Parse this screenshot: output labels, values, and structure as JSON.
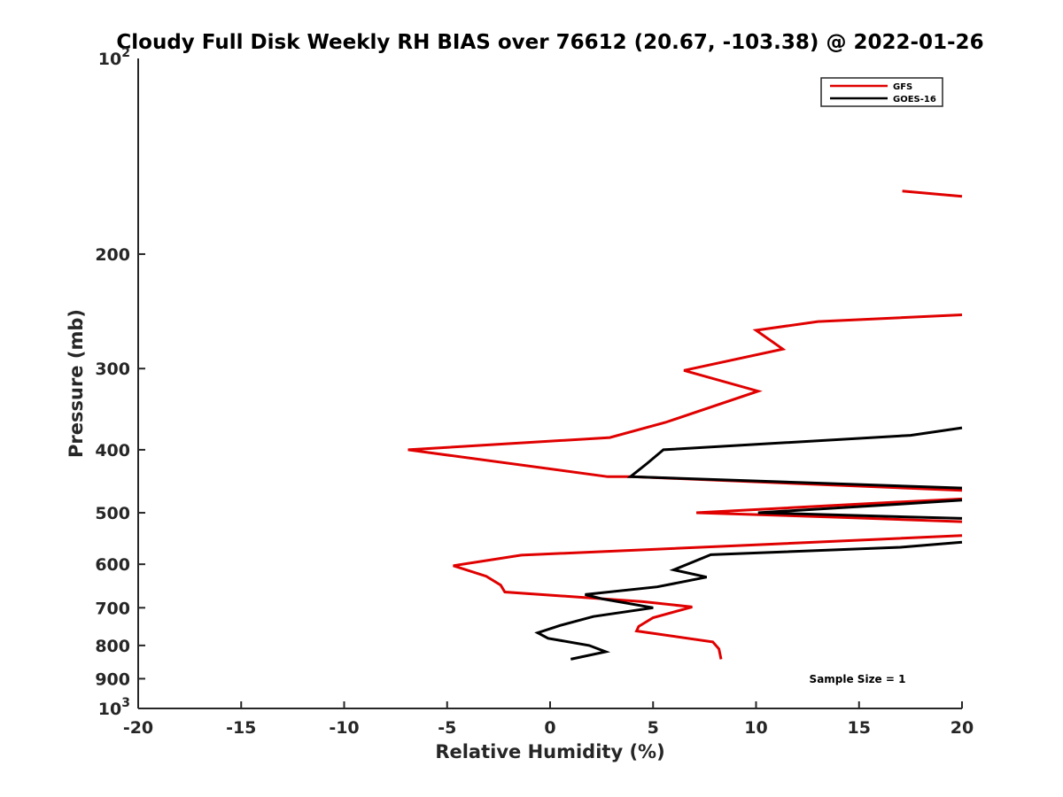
{
  "chart_data": {
    "type": "line",
    "title": "Cloudy Full Disk Weekly RH BIAS over 76612 (20.67, -103.38) @ 2022-01-26",
    "xlabel": "Relative Humidity (%)",
    "ylabel": "Pressure (mb)",
    "xlim": [
      -20,
      20
    ],
    "ylim": [
      100,
      1000
    ],
    "y_scale": "log",
    "y_reversed": true,
    "x_ticks": [
      -20,
      -15,
      -10,
      -5,
      0,
      5,
      10,
      15,
      20
    ],
    "x_tick_labels": [
      "-20",
      "-15",
      "-10",
      "-5",
      "0",
      "5",
      "10",
      "15",
      "20"
    ],
    "y_ticks": [
      {
        "value": 100,
        "base": "10",
        "exp": "2"
      },
      {
        "value": 200,
        "label": "200"
      },
      {
        "value": 300,
        "label": "300"
      },
      {
        "value": 400,
        "label": "400"
      },
      {
        "value": 500,
        "label": "500"
      },
      {
        "value": 600,
        "label": "600"
      },
      {
        "value": 700,
        "label": "700"
      },
      {
        "value": 800,
        "label": "800"
      },
      {
        "value": 900,
        "label": "900"
      },
      {
        "value": 1000,
        "base": "10",
        "exp": "3"
      }
    ],
    "legend": {
      "position": "top-right"
    },
    "annotation": "Sample Size = 1",
    "series": [
      {
        "name": "GFS",
        "color": "#e00000",
        "segments": [
          [
            [
              17.1,
              160
            ],
            [
              20.0,
              163
            ]
          ],
          [
            [
              20.0,
              248
            ],
            [
              13.0,
              254
            ],
            [
              10.0,
              262
            ],
            [
              11.3,
              280
            ],
            [
              6.5,
              302
            ],
            [
              10.1,
              325
            ],
            [
              5.6,
              363
            ],
            [
              2.9,
              383
            ],
            [
              -6.9,
              400
            ],
            [
              2.8,
              440
            ],
            [
              4.0,
              440
            ],
            [
              20.0,
              462
            ]
          ],
          [
            [
              20.0,
              476
            ],
            [
              16.0,
              483
            ],
            [
              7.1,
              500
            ],
            [
              14.0,
              508
            ],
            [
              20.0,
              516
            ]
          ],
          [
            [
              20.0,
              542
            ],
            [
              10.0,
              560
            ],
            [
              -1.4,
              581
            ],
            [
              -4.7,
              603
            ],
            [
              -3.1,
              626
            ],
            [
              -2.4,
              646
            ],
            [
              -2.2,
              662
            ],
            [
              4.5,
              685
            ],
            [
              6.9,
              698
            ],
            [
              5.0,
              725
            ],
            [
              4.3,
              748
            ],
            [
              4.2,
              760
            ],
            [
              7.9,
              790
            ],
            [
              8.2,
              810
            ],
            [
              8.3,
              840
            ]
          ]
        ]
      },
      {
        "name": "GOES-16",
        "color": "#000000",
        "segments": [
          [
            [
              20.0,
              370
            ],
            [
              17.5,
              380
            ],
            [
              5.5,
              400
            ],
            [
              4.7,
              420
            ],
            [
              3.9,
              440
            ],
            [
              20.0,
              458
            ]
          ],
          [
            [
              20.0,
              478
            ],
            [
              17.0,
              485
            ],
            [
              10.1,
              500
            ],
            [
              20.0,
              510
            ]
          ],
          [
            [
              20.0,
              555
            ],
            [
              17.0,
              565
            ],
            [
              7.8,
              580
            ],
            [
              6.0,
              612
            ],
            [
              7.6,
              628
            ],
            [
              5.2,
              650
            ],
            [
              1.7,
              668
            ],
            [
              2.5,
              678
            ],
            [
              5.0,
              700
            ],
            [
              2.1,
              722
            ],
            [
              0.5,
              745
            ],
            [
              -0.6,
              765
            ],
            [
              -0.1,
              780
            ],
            [
              1.9,
              800
            ],
            [
              2.7,
              818
            ],
            [
              1.0,
              840
            ]
          ]
        ]
      }
    ]
  }
}
